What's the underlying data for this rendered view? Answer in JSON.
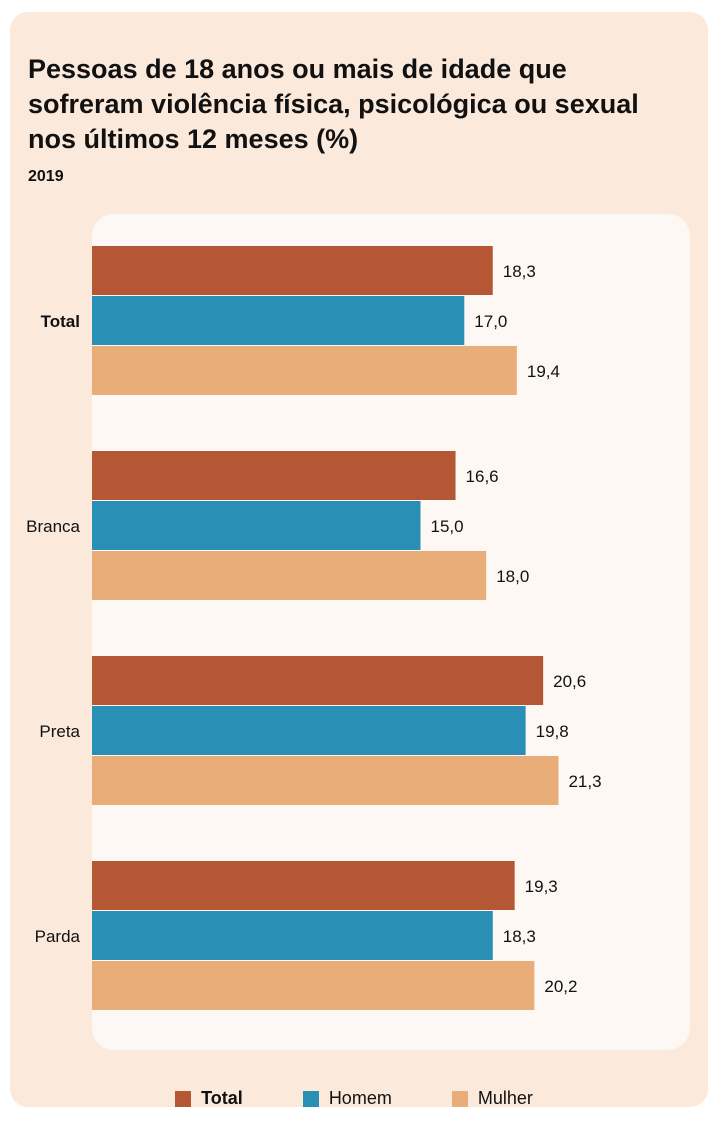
{
  "title": "Pessoas de 18 anos ou mais de idade que sofreram violência física, psicológica ou sexual nos últimos 12 meses (%)",
  "subtitle": "2019",
  "colors": {
    "Total": "#b55734",
    "Homem": "#2a8fb5",
    "Mulher": "#e8ad78"
  },
  "chart_data": {
    "type": "bar",
    "orientation": "horizontal",
    "title": "Pessoas de 18 anos ou mais de idade que sofreram violência física, psicológica ou sexual nos últimos 12 meses (%)",
    "subtitle": "2019",
    "categories": [
      "Total",
      "Branca",
      "Preta",
      "Parda"
    ],
    "series": [
      {
        "name": "Total",
        "values": [
          18.3,
          16.6,
          20.6,
          19.3
        ],
        "labels": [
          "18,3",
          "16,6",
          "20,6",
          "19,3"
        ]
      },
      {
        "name": "Homem",
        "values": [
          17.0,
          15.0,
          19.8,
          18.3
        ],
        "labels": [
          "17,0",
          "15,0",
          "19,8",
          "18,3"
        ]
      },
      {
        "name": "Mulher",
        "values": [
          19.4,
          18.0,
          21.3,
          20.2
        ],
        "labels": [
          "19,4",
          "18,0",
          "21,3",
          "20,2"
        ]
      }
    ],
    "xlim": [
      0,
      25
    ],
    "grid": false,
    "legend_position": "bottom"
  },
  "legend": [
    {
      "label": "Total",
      "bold": true
    },
    {
      "label": "Homem",
      "bold": false
    },
    {
      "label": "Mulher",
      "bold": false
    }
  ]
}
